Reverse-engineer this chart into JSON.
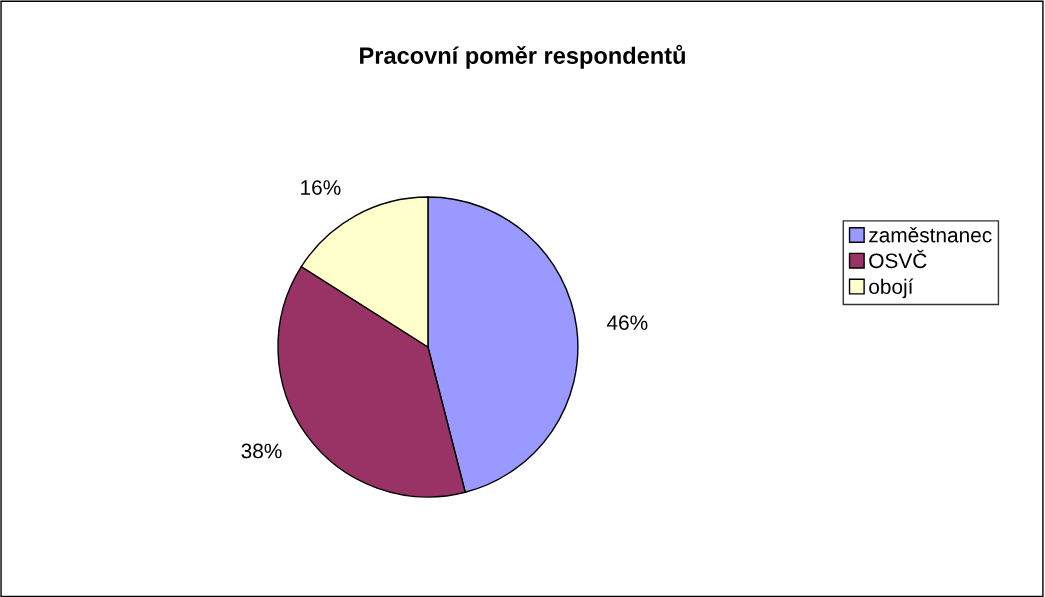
{
  "chart_data": {
    "type": "pie",
    "title": "Pracovní poměr respondentů",
    "categories": [
      "zaměstnanec",
      "OSVČ",
      "obojí"
    ],
    "values": [
      46,
      38,
      16
    ],
    "colors": [
      "#9999ff",
      "#993366",
      "#ffffcc"
    ],
    "value_labels": [
      "46%",
      "38%",
      "16%"
    ],
    "legend": "right"
  }
}
